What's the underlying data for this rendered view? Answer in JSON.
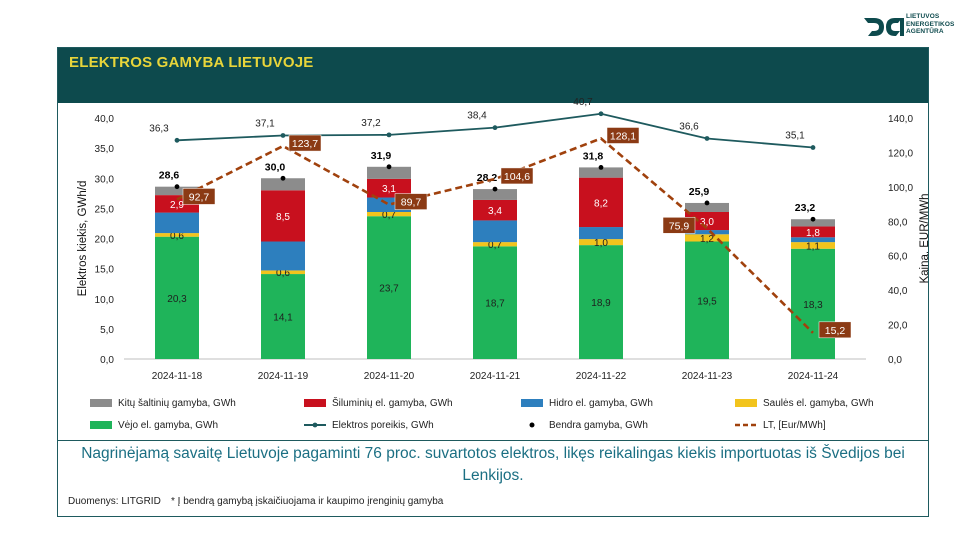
{
  "brand": {
    "lines": [
      "LIETUVOS",
      "ENERGETIKOS",
      "AGENTŪRA"
    ],
    "color": "#0d4a4d"
  },
  "header": {
    "title": "ELEKTROS GAMYBA LIETUVOJE"
  },
  "message": "Nagrinėjamą savaitę Lietuvoje pagaminti 76 proc. suvartotos elektros, likęs reikalingas kiekis importuotas iš Švedijos bei Lenkijos.",
  "source": "Duomenys: LITGRID",
  "footnote": "* Į bendrą gamybą įskaičiuojama ir kaupimo įrenginių gamyba",
  "chart_data": {
    "type": "bar",
    "stacked": true,
    "categories": [
      "2024-11-18",
      "2024-11-19",
      "2024-11-20",
      "2024-11-21",
      "2024-11-22",
      "2024-11-23",
      "2024-11-24"
    ],
    "ylabel": "Elektros kiekis, GWh/d",
    "y2label": "Kaina, EUR/MWh",
    "ylim": [
      0,
      40
    ],
    "yticks": [
      "0,0",
      "5,0",
      "10,0",
      "15,0",
      "20,0",
      "25,0",
      "30,0",
      "35,0",
      "40,0"
    ],
    "y2lim": [
      0,
      140
    ],
    "y2ticks": [
      "0,0",
      "20,0",
      "40,0",
      "60,0",
      "80,0",
      "100,0",
      "120,0",
      "140,0"
    ],
    "series": [
      {
        "name": "Vėjo el. gamyba, GWh",
        "color": "#1fb45a",
        "values": [
          20.3,
          14.1,
          23.7,
          18.7,
          18.9,
          19.5,
          18.3
        ],
        "labels": [
          "20,3",
          "14,1",
          "23,7",
          "18,7",
          "18,9",
          "19,5",
          "18,3"
        ]
      },
      {
        "name": "Saulės el. gamyba, GWh",
        "color": "#f2c41d",
        "values": [
          0.6,
          0.6,
          0.7,
          0.7,
          1.0,
          1.2,
          1.1
        ],
        "labels": [
          "0,6",
          "0,6",
          "0,7",
          "0,7",
          "1,0",
          "1,2",
          "1,1"
        ]
      },
      {
        "name": "Hidro el. gamyba, GWh",
        "color": "#2d7fbe",
        "values": [
          3.4,
          4.8,
          2.4,
          3.6,
          2.0,
          0.7,
          0.8
        ],
        "labels": [
          "",
          "",
          "",
          "",
          "",
          "",
          ""
        ]
      },
      {
        "name": "Šiluminių el. gamyba, GWh",
        "color": "#c8101e",
        "values": [
          2.9,
          8.5,
          3.1,
          3.4,
          8.2,
          3.0,
          1.8
        ],
        "labels": [
          "2,9",
          "8,5",
          "3,1",
          "3,4",
          "8,2",
          "3,0",
          "1,8"
        ]
      },
      {
        "name": "Kitų šaltinių gamyba,  GWh",
        "color": "#8c8c8c",
        "values": [
          1.4,
          2.0,
          2.0,
          1.8,
          1.7,
          1.5,
          1.2
        ],
        "labels": [
          "",
          "",
          "",
          "",
          "",
          "",
          ""
        ]
      }
    ],
    "total": {
      "name": "Bendra gamyba, GWh",
      "values": [
        28.6,
        30.0,
        31.9,
        28.2,
        31.8,
        25.9,
        23.2
      ],
      "labels": [
        "28,6",
        "30,0",
        "31,9",
        "28,2",
        "31,8",
        "25,9",
        "23,2"
      ]
    },
    "demand": {
      "name": "Elektros poreikis, GWh",
      "color": "#1e5a5e",
      "values": [
        36.3,
        37.1,
        37.2,
        38.4,
        40.7,
        36.6,
        35.1
      ],
      "labels": [
        "36,3",
        "37,1",
        "37,2",
        "38,4",
        "40,7",
        "36,6",
        "35,1"
      ]
    },
    "price": {
      "name": "LT, [Eur/MWh]",
      "color": "#a0410d",
      "values": [
        92.7,
        123.7,
        89.7,
        104.6,
        128.1,
        75.9,
        15.2
      ],
      "labels": [
        "92,7",
        "123,7",
        "89,7",
        "104,6",
        "128,1",
        "75,9",
        "15,2"
      ]
    },
    "legend": [
      {
        "key": "other",
        "label": "Kitų šaltinių gamyba,  GWh",
        "kind": "box",
        "color": "#8c8c8c"
      },
      {
        "key": "thermal",
        "label": "Šiluminių el. gamyba, GWh",
        "kind": "box",
        "color": "#c8101e"
      },
      {
        "key": "hydro",
        "label": "Hidro el. gamyba, GWh",
        "kind": "box",
        "color": "#2d7fbe"
      },
      {
        "key": "solar",
        "label": "Saulės el. gamyba, GWh",
        "kind": "box",
        "color": "#f2c41d"
      },
      {
        "key": "wind",
        "label": "Vėjo el. gamyba, GWh",
        "kind": "box",
        "color": "#1fb45a"
      },
      {
        "key": "demand",
        "label": "Elektros poreikis, GWh",
        "kind": "line",
        "color": "#1e5a5e"
      },
      {
        "key": "total",
        "label": "Bendra gamyba, GWh",
        "kind": "dot",
        "color": "#000000"
      },
      {
        "key": "price",
        "label": "LT, [Eur/MWh]",
        "kind": "dash",
        "color": "#a0410d"
      }
    ]
  }
}
